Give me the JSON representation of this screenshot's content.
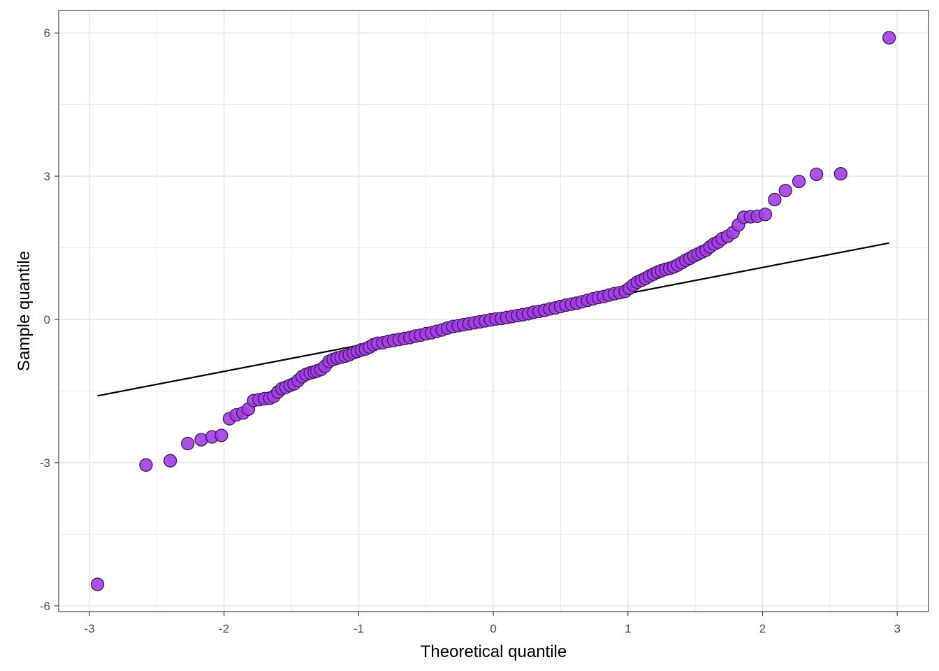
{
  "chart_data": {
    "type": "scatter",
    "title": "",
    "xlabel": "Theoretical quantile",
    "ylabel": "Sample quantile",
    "xlim": [
      -3.0,
      3.0
    ],
    "ylim": [
      -6.0,
      6.0
    ],
    "x_ticks": [
      {
        "value": -3,
        "label": "-3"
      },
      {
        "value": -2,
        "label": "-2"
      },
      {
        "value": -1,
        "label": "-1"
      },
      {
        "value": 0,
        "label": "0"
      },
      {
        "value": 1,
        "label": "1"
      },
      {
        "value": 2,
        "label": "2"
      },
      {
        "value": 3,
        "label": "3"
      }
    ],
    "y_ticks": [
      {
        "value": -6,
        "label": "-6"
      },
      {
        "value": -3,
        "label": "-3"
      },
      {
        "value": 0,
        "label": "0"
      },
      {
        "value": 3,
        "label": "3"
      },
      {
        "value": 6,
        "label": "6"
      }
    ],
    "grid": true,
    "series": [
      {
        "points": [
          [
            -2.94,
            -5.55
          ],
          [
            -2.58,
            -3.05
          ],
          [
            -2.4,
            -2.96
          ],
          [
            -2.27,
            -2.6
          ],
          [
            -2.17,
            -2.52
          ],
          [
            -2.09,
            -2.46
          ],
          [
            -2.02,
            -2.43
          ],
          [
            -1.96,
            -2.08
          ],
          [
            -1.91,
            -2.0
          ],
          [
            -1.86,
            -1.96
          ],
          [
            -1.82,
            -1.88
          ],
          [
            -1.78,
            -1.7
          ],
          [
            -1.74,
            -1.68
          ],
          [
            -1.7,
            -1.66
          ],
          [
            -1.66,
            -1.65
          ],
          [
            -1.63,
            -1.61
          ],
          [
            -1.6,
            -1.52
          ],
          [
            -1.57,
            -1.45
          ],
          [
            -1.54,
            -1.42
          ],
          [
            -1.51,
            -1.38
          ],
          [
            -1.48,
            -1.35
          ],
          [
            -1.45,
            -1.28
          ],
          [
            -1.42,
            -1.2
          ],
          [
            -1.39,
            -1.15
          ],
          [
            -1.36,
            -1.12
          ],
          [
            -1.33,
            -1.1
          ],
          [
            -1.31,
            -1.08
          ],
          [
            -1.28,
            -1.05
          ],
          [
            -1.25,
            -0.98
          ],
          [
            -1.22,
            -0.88
          ],
          [
            -1.19,
            -0.84
          ],
          [
            -1.16,
            -0.81
          ],
          [
            -1.13,
            -0.79
          ],
          [
            -1.1,
            -0.77
          ],
          [
            -1.07,
            -0.74
          ],
          [
            -1.04,
            -0.7
          ],
          [
            -1.01,
            -0.67
          ],
          [
            -0.98,
            -0.64
          ],
          [
            -0.95,
            -0.62
          ],
          [
            -0.92,
            -0.58
          ],
          [
            -0.89,
            -0.53
          ],
          [
            -0.86,
            -0.5
          ],
          [
            -0.82,
            -0.49
          ],
          [
            -0.78,
            -0.46
          ],
          [
            -0.74,
            -0.44
          ],
          [
            -0.7,
            -0.42
          ],
          [
            -0.66,
            -0.4
          ],
          [
            -0.62,
            -0.38
          ],
          [
            -0.58,
            -0.35
          ],
          [
            -0.54,
            -0.33
          ],
          [
            -0.5,
            -0.3
          ],
          [
            -0.46,
            -0.28
          ],
          [
            -0.42,
            -0.25
          ],
          [
            -0.38,
            -0.22
          ],
          [
            -0.34,
            -0.18
          ],
          [
            -0.3,
            -0.15
          ],
          [
            -0.26,
            -0.13
          ],
          [
            -0.22,
            -0.11
          ],
          [
            -0.18,
            -0.09
          ],
          [
            -0.14,
            -0.07
          ],
          [
            -0.1,
            -0.05
          ],
          [
            -0.06,
            -0.03
          ],
          [
            -0.02,
            -0.01
          ],
          [
            0.02,
            0.01
          ],
          [
            0.06,
            0.02
          ],
          [
            0.1,
            0.04
          ],
          [
            0.14,
            0.06
          ],
          [
            0.18,
            0.08
          ],
          [
            0.22,
            0.1
          ],
          [
            0.26,
            0.12
          ],
          [
            0.3,
            0.15
          ],
          [
            0.34,
            0.17
          ],
          [
            0.38,
            0.19
          ],
          [
            0.42,
            0.22
          ],
          [
            0.46,
            0.24
          ],
          [
            0.5,
            0.27
          ],
          [
            0.54,
            0.3
          ],
          [
            0.58,
            0.32
          ],
          [
            0.62,
            0.34
          ],
          [
            0.66,
            0.37
          ],
          [
            0.7,
            0.4
          ],
          [
            0.74,
            0.43
          ],
          [
            0.78,
            0.46
          ],
          [
            0.82,
            0.48
          ],
          [
            0.86,
            0.51
          ],
          [
            0.9,
            0.54
          ],
          [
            0.94,
            0.56
          ],
          [
            0.98,
            0.59
          ],
          [
            1.01,
            0.65
          ],
          [
            1.04,
            0.72
          ],
          [
            1.07,
            0.78
          ],
          [
            1.1,
            0.82
          ],
          [
            1.13,
            0.86
          ],
          [
            1.16,
            0.91
          ],
          [
            1.19,
            0.95
          ],
          [
            1.22,
            0.99
          ],
          [
            1.25,
            1.02
          ],
          [
            1.28,
            1.05
          ],
          [
            1.31,
            1.07
          ],
          [
            1.34,
            1.1
          ],
          [
            1.37,
            1.14
          ],
          [
            1.4,
            1.19
          ],
          [
            1.43,
            1.24
          ],
          [
            1.46,
            1.28
          ],
          [
            1.49,
            1.33
          ],
          [
            1.52,
            1.37
          ],
          [
            1.55,
            1.41
          ],
          [
            1.58,
            1.45
          ],
          [
            1.61,
            1.52
          ],
          [
            1.64,
            1.58
          ],
          [
            1.67,
            1.62
          ],
          [
            1.7,
            1.69
          ],
          [
            1.74,
            1.74
          ],
          [
            1.78,
            1.82
          ],
          [
            1.82,
            1.98
          ],
          [
            1.86,
            2.14
          ],
          [
            1.91,
            2.15
          ],
          [
            1.96,
            2.16
          ],
          [
            2.02,
            2.2
          ],
          [
            2.09,
            2.51
          ],
          [
            2.17,
            2.7
          ],
          [
            2.27,
            2.89
          ],
          [
            2.4,
            3.04
          ],
          [
            2.58,
            3.05
          ],
          [
            2.94,
            5.9
          ]
        ]
      }
    ],
    "reference_line": {
      "x": [
        -2.94,
        2.94
      ],
      "y": [
        -1.6,
        1.6
      ]
    },
    "colors": {
      "point_fill": "#a23de8",
      "point_stroke": "#3c1a54",
      "line": "#000000",
      "grid": "#ebebeb",
      "panel_border": "#333333",
      "background": "#ffffff"
    }
  }
}
